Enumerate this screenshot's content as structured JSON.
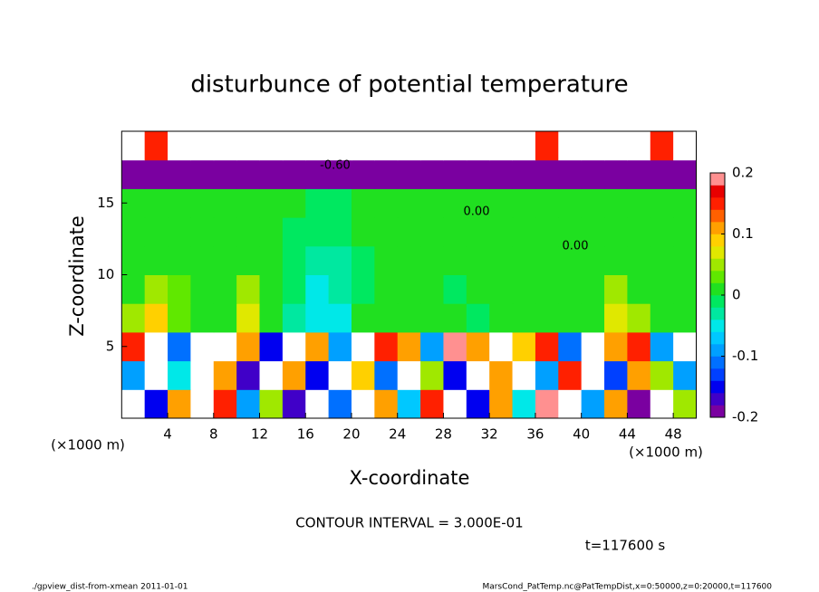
{
  "chart_data": {
    "type": "heatmap",
    "title": "disturbunce of potential temperature",
    "x_label": "X-coordinate",
    "y_label": "Z-coordinate",
    "x_unit": "(×1000 m)",
    "y_unit": "(×1000 m)",
    "xlim": [
      0,
      50
    ],
    "xticks": [
      4,
      8,
      12,
      16,
      20,
      24,
      28,
      32,
      36,
      40,
      44,
      48
    ],
    "ylim": [
      0,
      20
    ],
    "yticks": [
      5,
      10,
      15
    ],
    "annotations": [
      "-0.60",
      "0.00",
      "0.00"
    ],
    "contour_note": "CONTOUR INTERVAL = 3.000E-01",
    "time_label": "t=117600 s",
    "footer_left": "./gpview_dist-from-xmean  2011-01-01",
    "footer_right": "MarsCond_PatTemp.nc@PatTempDist,x=0:50000,z=0:20000,t=117600",
    "colorbar": {
      "lim": [
        -0.2,
        0.2
      ],
      "ticks": [
        0.2,
        0.1,
        0,
        -0.1,
        -0.2
      ],
      "colors": [
        "#7a00a0",
        "#4000c8",
        "#0000f0",
        "#0040ff",
        "#0070ff",
        "#00a0ff",
        "#00c8ff",
        "#00e8e8",
        "#00e8a0",
        "#00e860",
        "#20e020",
        "#60e800",
        "#a0e800",
        "#e0e800",
        "#ffd000",
        "#ffa000",
        "#ff6000",
        "#ff2000",
        "#e80000",
        "#ff9090"
      ]
    },
    "z": [
      [
        0.3,
        -0.15,
        0.1,
        0.3,
        0.15,
        -0.1,
        0.05,
        -0.18,
        0.2,
        -0.12,
        0.3,
        0.12,
        -0.08,
        0.15,
        0.3,
        -0.15,
        0.1,
        -0.05,
        0.18,
        0.3,
        -0.1,
        0.1,
        -0.2,
        0.3,
        0.05
      ],
      [
        -0.1,
        0.3,
        -0.05,
        0.3,
        0.12,
        -0.18,
        0.3,
        0.1,
        -0.15,
        0.2,
        0.08,
        -0.12,
        0.3,
        0.05,
        -0.16,
        0.3,
        0.12,
        0.3,
        -0.1,
        0.15,
        0.3,
        -0.14,
        0.1,
        0.05,
        -0.1
      ],
      [
        0.15,
        0.3,
        -0.12,
        0.3,
        0.3,
        0.1,
        -0.15,
        0.3,
        0.12,
        -0.1,
        0.3,
        0.15,
        0.1,
        -0.1,
        0.19,
        0.12,
        0.3,
        0.08,
        0.15,
        -0.12,
        0.3,
        0.1,
        0.15,
        -0.1,
        0.3
      ],
      [
        0.04,
        0.08,
        0.03,
        0.02,
        0.01,
        0.06,
        0.02,
        -0.03,
        -0.05,
        -0.04,
        0,
        0.02,
        0,
        0.01,
        0,
        -0.01,
        0.02,
        0.01,
        0,
        0.01,
        0.02,
        0.07,
        0.04,
        0.01,
        0
      ],
      [
        0.02,
        0.05,
        0.03,
        0,
        0,
        0.04,
        0.02,
        -0.02,
        -0.04,
        -0.03,
        -0.01,
        0,
        0,
        0,
        -0.01,
        0,
        0,
        0,
        0,
        0,
        0.01,
        0.04,
        0.02,
        0,
        0
      ],
      [
        0,
        0.01,
        0.01,
        0,
        0,
        0.01,
        0,
        -0.02,
        -0.03,
        -0.03,
        -0.01,
        0,
        0,
        0,
        0,
        0,
        0,
        0,
        0,
        0,
        0,
        0.01,
        0,
        0,
        0
      ],
      [
        0,
        0,
        0,
        0,
        0,
        0,
        0,
        -0.01,
        -0.01,
        -0.01,
        0,
        0,
        0,
        0,
        0,
        0,
        0,
        0,
        0,
        0,
        0,
        0,
        0,
        0,
        0
      ],
      [
        0,
        0,
        0,
        0,
        0,
        0,
        0,
        0,
        -0.01,
        -0.01,
        0,
        0,
        0,
        0,
        0,
        0,
        0,
        0,
        0,
        0,
        0,
        0,
        0,
        0,
        0
      ],
      [
        -0.19,
        -0.19,
        -0.19,
        -0.19,
        -0.19,
        -0.19,
        -0.19,
        -0.19,
        -0.19,
        -0.19,
        -0.19,
        -0.19,
        -0.19,
        -0.19,
        -0.19,
        -0.19,
        -0.19,
        -0.19,
        -0.19,
        -0.19,
        -0.19,
        -0.19,
        -0.19,
        -0.19,
        -0.19
      ],
      [
        0.3,
        0.15,
        0.3,
        0.3,
        0.3,
        0.3,
        0.3,
        0.3,
        0.3,
        0.3,
        0.3,
        0.3,
        0.3,
        0.3,
        0.3,
        0.3,
        0.3,
        0.3,
        0.15,
        0.3,
        0.3,
        0.3,
        0.3,
        0.15,
        0.3
      ]
    ]
  }
}
